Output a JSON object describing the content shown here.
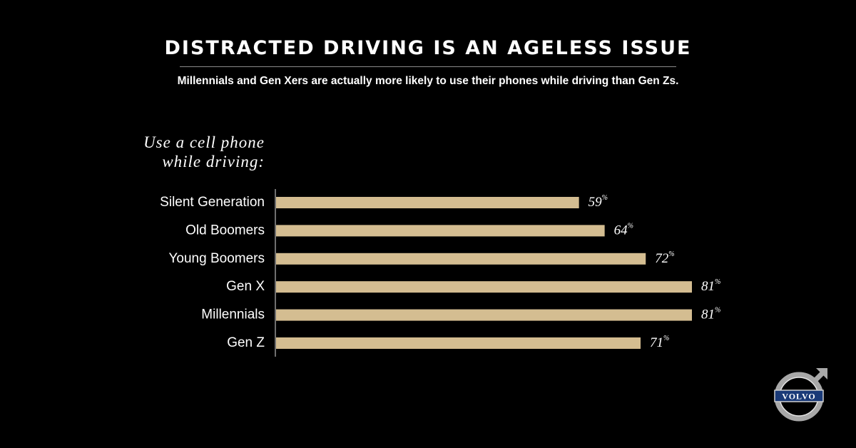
{
  "header": {
    "title": "DISTRACTED DRIVING IS AN AGELESS ISSUE",
    "subtitle": "Millennials and Gen Xers are actually more likely to use their phones while driving than Gen Zs."
  },
  "chart_data": {
    "type": "bar",
    "orientation": "horizontal",
    "title": "Use a cell phone while driving:",
    "categories": [
      "Silent Generation",
      "Old Boomers",
      "Young Boomers",
      "Gen X",
      "Millennials",
      "Gen Z"
    ],
    "values": [
      59,
      64,
      72,
      81,
      81,
      71
    ],
    "value_labels": [
      "59",
      "64",
      "72",
      "81",
      "81",
      "71"
    ],
    "unit": "%",
    "xlim": [
      0,
      81
    ],
    "grid": false,
    "bar_color": "#d4bd91"
  },
  "logo": {
    "text": "VOLVO",
    "name": "volvo-logo"
  },
  "colors": {
    "background": "#000000",
    "text": "#ffffff",
    "bar": "#d4bd91"
  }
}
